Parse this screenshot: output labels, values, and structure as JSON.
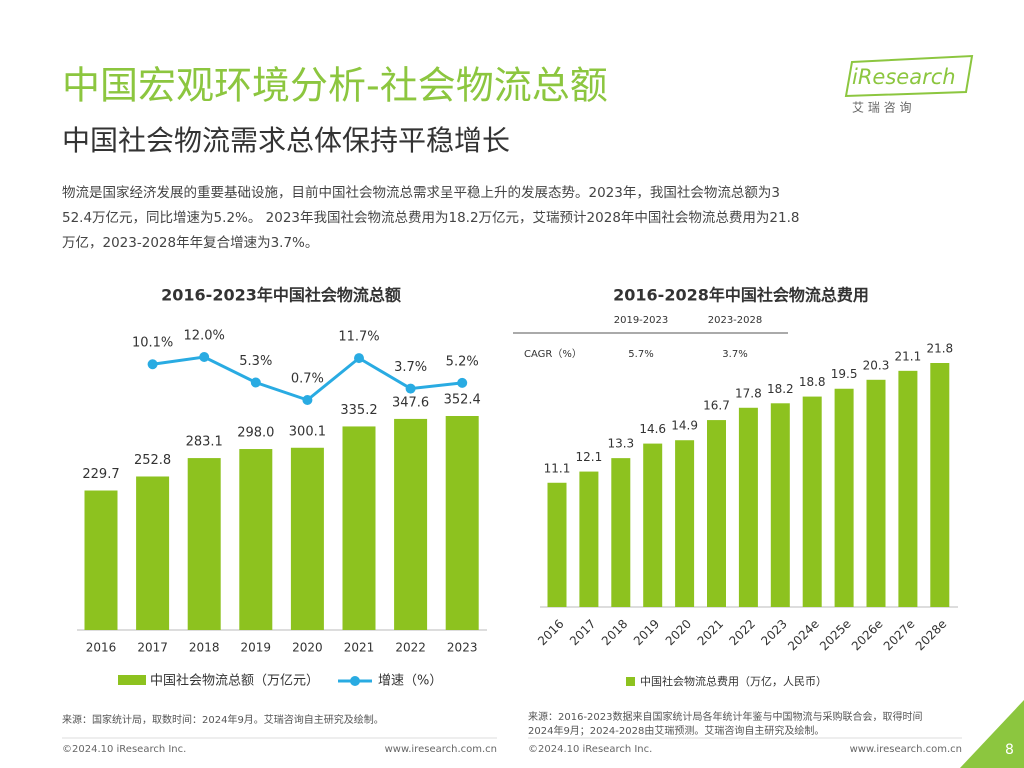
{
  "header": {
    "title": "中国宏观环境分析-社会物流总额",
    "subtitle": "中国社会物流需求总体保持平稳增长",
    "logo": "iResearch",
    "logo_sub": "艾 瑞 咨 询"
  },
  "intro": [
    "物流是国家经济发展的重要基础设施，目前中国社会物流总需求呈平稳上升的发展态势。2023年，我国社会物流总额为3",
    "52.4万亿元，同比增速为5.2%。 2023年我国社会物流总费用为18.2万亿元，艾瑞预计2028年中国社会物流总费用为21.8",
    "万亿，2023-2028年年复合增速为3.7%。"
  ],
  "chart_data": [
    {
      "type": "combo",
      "title": "2016-2023年中国社会物流总额",
      "categories": [
        "2016",
        "2017",
        "2018",
        "2019",
        "2020",
        "2021",
        "2022",
        "2023"
      ],
      "series": [
        {
          "name": "中国社会物流总额（万亿元）",
          "type": "bar",
          "color": "#8dc21f",
          "values": [
            229.7,
            252.8,
            283.1,
            298.0,
            300.1,
            335.2,
            347.6,
            352.4
          ],
          "value_labels": [
            "229.7",
            "252.8",
            "283.1",
            "298.0",
            "300.1",
            "335.2",
            "347.6",
            "352.4"
          ]
        },
        {
          "name": "增速（%）",
          "type": "line",
          "color": "#29abe2",
          "values": [
            null,
            10.1,
            12.0,
            5.3,
            0.7,
            11.7,
            3.7,
            5.2
          ],
          "value_labels": [
            null,
            "10.1%",
            "12.0%",
            "5.3%",
            "0.7%",
            "11.7%",
            "3.7%",
            "5.2%"
          ]
        }
      ],
      "source": "来源：国家统计局，取数时间：2024年9月。艾瑞咨询自主研究及绘制。"
    },
    {
      "type": "bar",
      "title": "2016-2028年中国社会物流总费用",
      "categories": [
        "2016",
        "2017",
        "2018",
        "2019",
        "2020",
        "2021",
        "2022",
        "2023",
        "2024e",
        "2025e",
        "2026e",
        "2027e",
        "2028e"
      ],
      "series": [
        {
          "name": "中国社会物流总费用（万亿，人民币）",
          "color": "#8dc21f",
          "values": [
            11.1,
            12.1,
            13.3,
            14.6,
            14.9,
            16.7,
            17.8,
            18.2,
            18.8,
            19.5,
            20.3,
            21.1,
            21.8
          ]
        }
      ],
      "table": {
        "columns": [
          "2019-2023",
          "2023-2028"
        ],
        "rows": [
          [
            "CAGR（%）",
            "5.7%",
            "3.7%"
          ]
        ]
      },
      "source": [
        "来源：2016-2023数据来自国家统计局各年统计年鉴与中国物流与采购联合会，取得时间",
        "2024年9月；2024-2028由艾瑞预测。艾瑞咨询自主研究及绘制。"
      ]
    }
  ],
  "footer": {
    "left_copyright": "©2024.10 iResearch Inc.",
    "left_url": "www.iresearch.com.cn",
    "right_copyright": "©2024.10 iResearch Inc.",
    "right_url": "www.iresearch.com.cn",
    "page": "8"
  }
}
